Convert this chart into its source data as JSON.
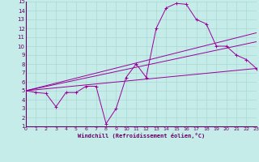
{
  "xlabel": "Windchill (Refroidissement éolien,°C)",
  "bg_color": "#c5ece8",
  "grid_color": "#aad8d4",
  "line_color": "#990099",
  "marker_color": "#990099",
  "ylim": [
    1,
    15
  ],
  "xlim": [
    0,
    23
  ],
  "yticks": [
    1,
    2,
    3,
    4,
    5,
    6,
    7,
    8,
    9,
    10,
    11,
    12,
    13,
    14,
    15
  ],
  "xticks": [
    0,
    1,
    2,
    3,
    4,
    5,
    6,
    7,
    8,
    9,
    10,
    11,
    12,
    13,
    14,
    15,
    16,
    17,
    18,
    19,
    20,
    21,
    22,
    23
  ],
  "series1_x": [
    0,
    1,
    2,
    3,
    4,
    5,
    6,
    7,
    8,
    9,
    10,
    11,
    12,
    13,
    14,
    15,
    16,
    17,
    18,
    19,
    20,
    21,
    22,
    23
  ],
  "series1_y": [
    5.0,
    4.8,
    4.7,
    3.2,
    4.8,
    4.8,
    5.5,
    5.5,
    1.3,
    3.0,
    6.5,
    8.0,
    6.5,
    12.0,
    14.3,
    14.8,
    14.7,
    13.0,
    12.5,
    10.0,
    10.0,
    9.0,
    8.5,
    7.5
  ],
  "line1_x": [
    0,
    23
  ],
  "line1_y": [
    5.0,
    7.5
  ],
  "line2_x": [
    0,
    23
  ],
  "line2_y": [
    5.0,
    10.5
  ],
  "line3_x": [
    0,
    23
  ],
  "line3_y": [
    5.0,
    11.5
  ]
}
